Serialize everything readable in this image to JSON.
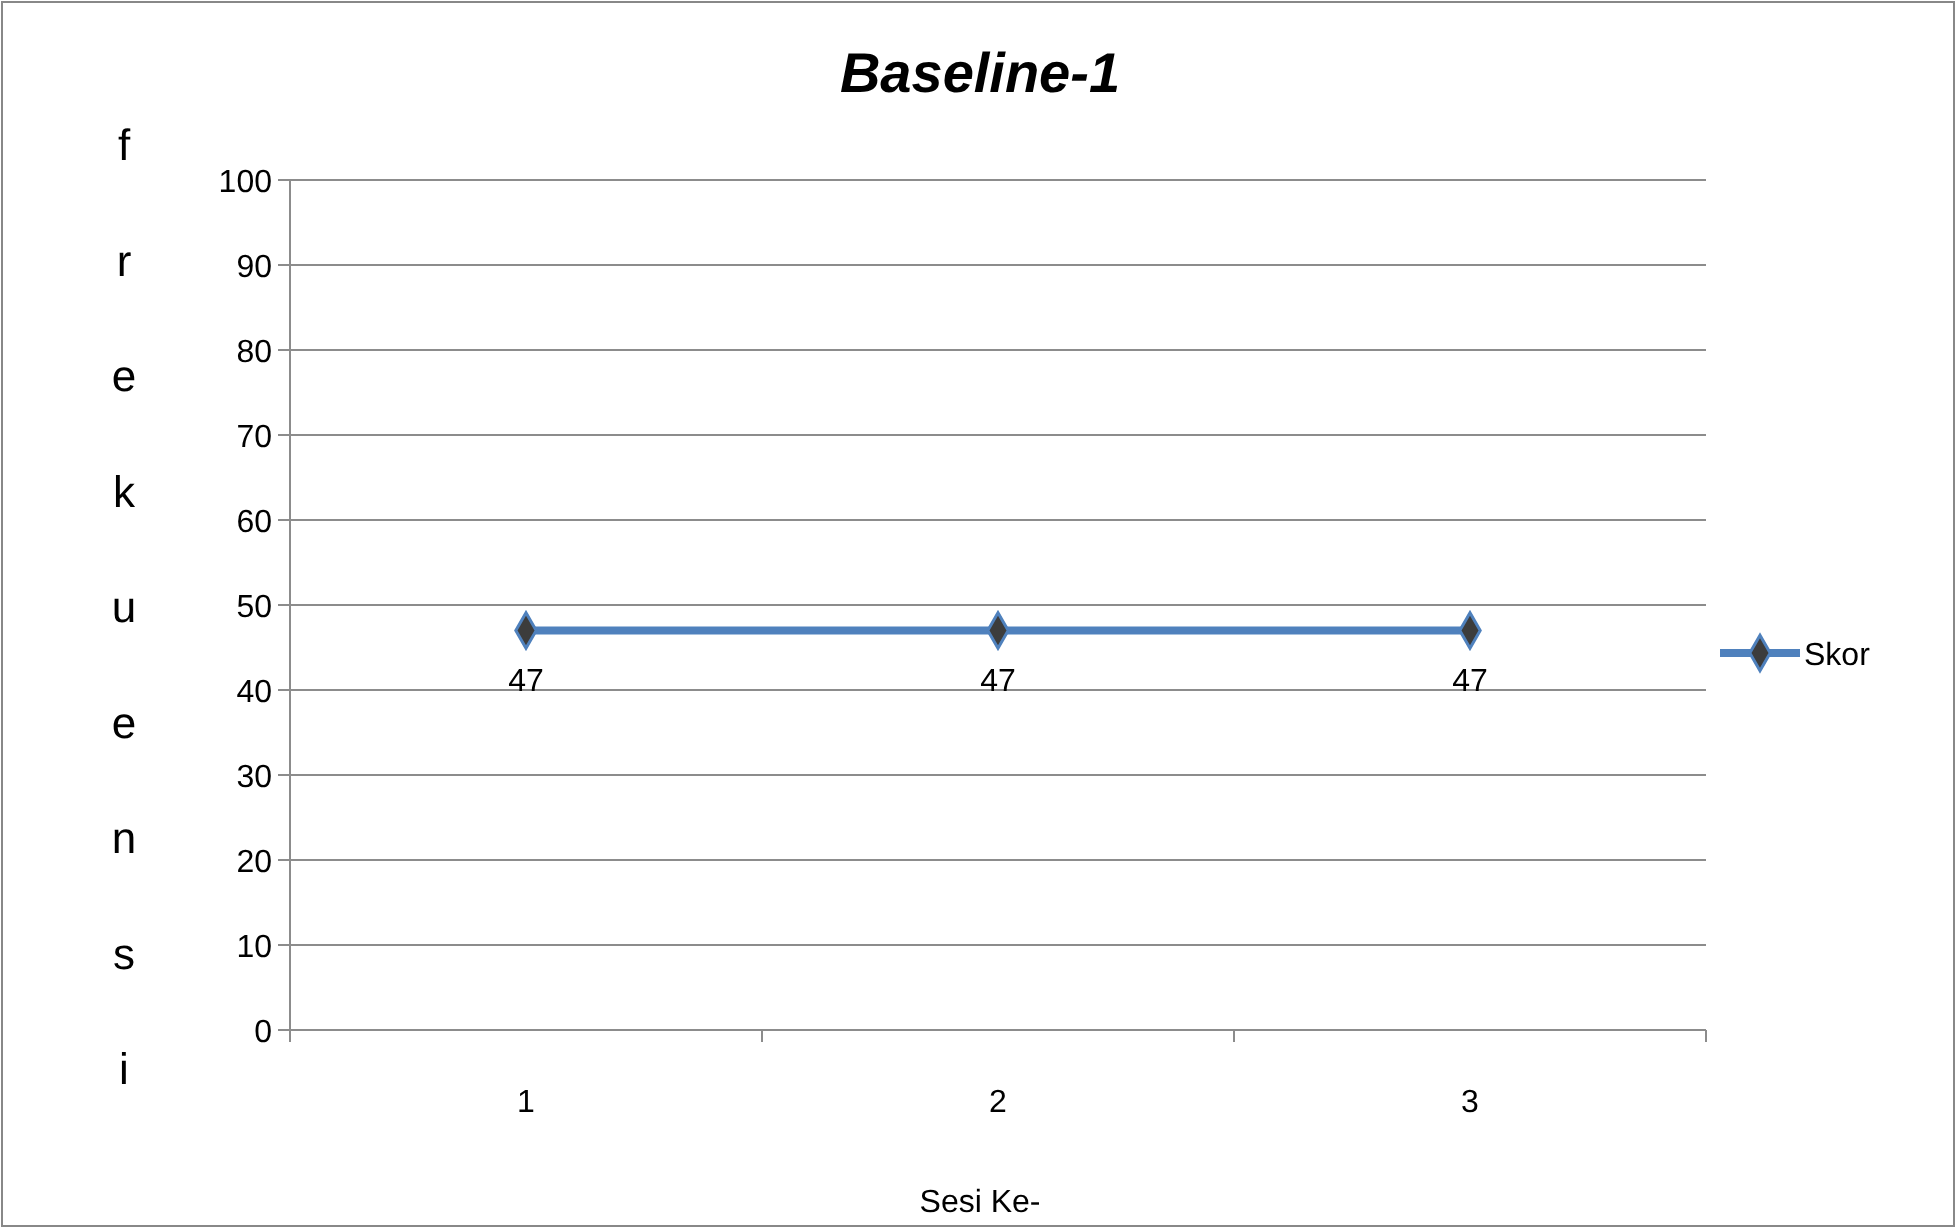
{
  "chart_data": {
    "type": "line",
    "title": "Baseline-1",
    "xlabel": "Sesi Ke-",
    "ylabel": "frekuensi",
    "categories": [
      "1",
      "2",
      "3"
    ],
    "series": [
      {
        "name": "Skor",
        "color": "#4f81bd",
        "values": [
          47,
          47,
          47
        ]
      }
    ],
    "ylim": [
      0,
      100
    ],
    "yticks": [
      0,
      10,
      20,
      30,
      40,
      50,
      60,
      70,
      80,
      90,
      100
    ],
    "grid": "y",
    "legend": "right",
    "marker": "diamond",
    "data_labels": true
  }
}
